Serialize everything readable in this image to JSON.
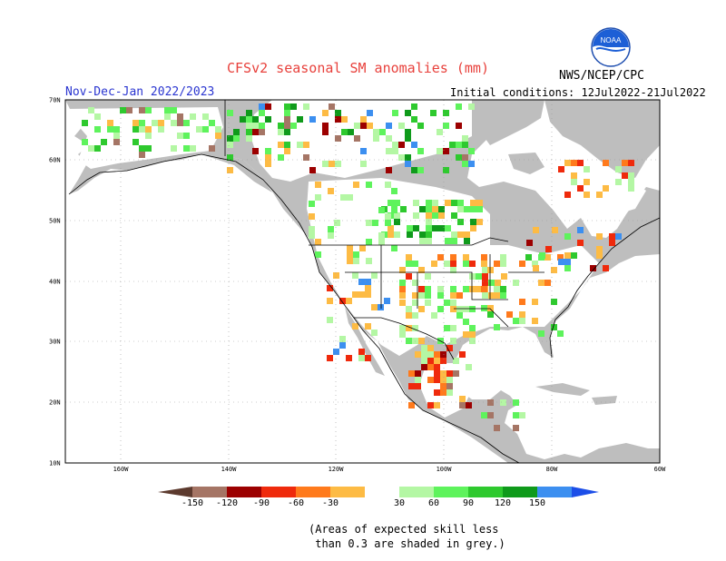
{
  "title": "CFSv2 seasonal SM anomalies (mm)",
  "subtitle": "Nov-Dec-Jan 2022/2023",
  "initial_conditions": "Initial conditions: 12Jul2022-21Jul2022",
  "agency": "NWS/NCEP/CPC",
  "logo_text": "NOAA",
  "lat_labels": [
    "70N",
    "60N",
    "50N",
    "40N",
    "30N",
    "20N",
    "10N"
  ],
  "lon_labels": [
    "160W",
    "140W",
    "120W",
    "100W",
    "80W",
    "60W"
  ],
  "colorbar": {
    "ticks": [
      "-150",
      "-120",
      "-90",
      "-60",
      "-30",
      "30",
      "60",
      "90",
      "120",
      "150"
    ],
    "colors": [
      "#5c3a2e",
      "#a57565",
      "#9c0000",
      "#ef2a0c",
      "#ff7a1c",
      "#fdbb44",
      "#ffffff",
      "#b4f7a4",
      "#5ef35c",
      "#2ec92e",
      "#0f9a1b",
      "#3c8ff0",
      "#1c4ee8"
    ]
  },
  "note": "(Areas of expected skill less\n than 0.3 are shaded in grey.)",
  "colors": {
    "land_no_skill": "#bebebe",
    "ocean": "#ffffff",
    "title": "#e8413c",
    "subtitle": "#2a35d0"
  }
}
